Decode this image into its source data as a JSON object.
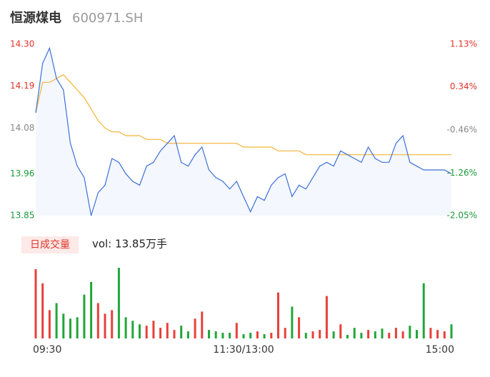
{
  "chart_data": {
    "type": "intraday",
    "title": "恒源煤电",
    "subtitle": "600971.SH",
    "legend_label": "日成交量",
    "vol_label": "vol: 13.85万手",
    "x": [
      0,
      4,
      8,
      12,
      16,
      20,
      24,
      28,
      32,
      36,
      40,
      44,
      48,
      52,
      56,
      60,
      64,
      68,
      72,
      76,
      80,
      84,
      88,
      92,
      96,
      100,
      104,
      108,
      112,
      116,
      120,
      124,
      128,
      132,
      136,
      140,
      144,
      148,
      152,
      156,
      160,
      164,
      168,
      172,
      176,
      180,
      184,
      188,
      192,
      196,
      200,
      204,
      208,
      212,
      216,
      220,
      224,
      228,
      232,
      236,
      240
    ],
    "xlim": [
      0,
      240
    ],
    "xticks": [
      {
        "value": 0,
        "label": "09:30"
      },
      {
        "value": 120,
        "label": "11:30/13:00"
      },
      {
        "value": 240,
        "label": "15:00"
      }
    ],
    "ylim": [
      13.85,
      14.3
    ],
    "yticks": [
      {
        "value": 14.3,
        "label": "14.30"
      },
      {
        "value": 14.19,
        "label": "14.19"
      },
      {
        "value": 14.08,
        "label": "14.08"
      },
      {
        "value": 13.96,
        "label": "13.96"
      },
      {
        "value": 13.85,
        "label": "13.85"
      }
    ],
    "ytick_colors": [
      "#e0352b",
      "#e0352b",
      "#888888",
      "#1a9a3a",
      "#1a9a3a"
    ],
    "y2lim": [
      -2.05,
      1.13
    ],
    "y2ticks": [
      {
        "value": 1.13,
        "label": "1.13%"
      },
      {
        "value": 0.34,
        "label": "0.34%"
      },
      {
        "value": -0.46,
        "label": "-0.46%"
      },
      {
        "value": -1.26,
        "label": "-1.26%"
      },
      {
        "value": -2.05,
        "label": "-2.05%"
      }
    ],
    "y2tick_colors": [
      "#e0352b",
      "#e0352b",
      "#888888",
      "#1a9a3a",
      "#1a9a3a"
    ],
    "series": [
      {
        "color": "#3b6fd9",
        "values": [
          14.12,
          14.25,
          14.29,
          14.21,
          14.18,
          14.04,
          13.98,
          13.95,
          13.85,
          13.91,
          13.93,
          14.0,
          13.99,
          13.96,
          13.94,
          13.93,
          13.98,
          13.99,
          14.02,
          14.04,
          14.06,
          13.99,
          13.98,
          14.01,
          14.03,
          13.97,
          13.95,
          13.94,
          13.92,
          13.94,
          13.9,
          13.86,
          13.9,
          13.89,
          13.93,
          13.95,
          13.96,
          13.9,
          13.93,
          13.92,
          13.95,
          13.98,
          13.99,
          13.98,
          14.02,
          14.01,
          14.0,
          13.99,
          14.03,
          14.0,
          13.99,
          13.99,
          14.04,
          14.06,
          13.99,
          13.98,
          13.97,
          13.97,
          13.97,
          13.97,
          13.96
        ]
      },
      {
        "color": "#f5b335",
        "values": [
          14.12,
          14.2,
          14.2,
          14.21,
          14.22,
          14.2,
          14.18,
          14.16,
          14.13,
          14.1,
          14.08,
          14.07,
          14.07,
          14.06,
          14.06,
          14.06,
          14.05,
          14.05,
          14.05,
          14.04,
          14.04,
          14.04,
          14.04,
          14.04,
          14.04,
          14.04,
          14.04,
          14.04,
          14.04,
          14.04,
          14.03,
          14.03,
          14.03,
          14.03,
          14.03,
          14.02,
          14.02,
          14.02,
          14.02,
          14.01,
          14.01,
          14.01,
          14.01,
          14.01,
          14.01,
          14.01,
          14.01,
          14.01,
          14.01,
          14.01,
          14.01,
          14.01,
          14.01,
          14.01,
          14.01,
          14.01,
          14.01,
          14.01,
          14.01,
          14.01,
          14.01
        ]
      }
    ],
    "volume": {
      "values": [
        98,
        78,
        40,
        50,
        35,
        28,
        30,
        62,
        80,
        50,
        35,
        40,
        100,
        30,
        25,
        20,
        18,
        25,
        15,
        22,
        12,
        18,
        10,
        28,
        38,
        12,
        10,
        8,
        8,
        22,
        6,
        8,
        10,
        6,
        8,
        65,
        15,
        45,
        30,
        8,
        10,
        12,
        60,
        10,
        20,
        5,
        15,
        8,
        12,
        10,
        14,
        8,
        15,
        10,
        18,
        12,
        78,
        15,
        12,
        10,
        20
      ],
      "ylim": [
        0,
        100
      ],
      "up_color": "#e8403a",
      "down_color": "#22a63a",
      "rising": [
        true,
        true,
        true,
        false,
        false,
        false,
        false,
        false,
        false,
        true,
        true,
        true,
        false,
        false,
        false,
        false,
        true,
        true,
        true,
        true,
        true,
        false,
        false,
        true,
        true,
        false,
        false,
        false,
        false,
        true,
        false,
        false,
        true,
        false,
        true,
        true,
        true,
        false,
        true,
        false,
        true,
        true,
        true,
        false,
        true,
        false,
        false,
        false,
        true,
        false,
        false,
        true,
        true,
        true,
        false,
        false,
        false,
        true,
        true,
        true,
        false
      ]
    }
  }
}
